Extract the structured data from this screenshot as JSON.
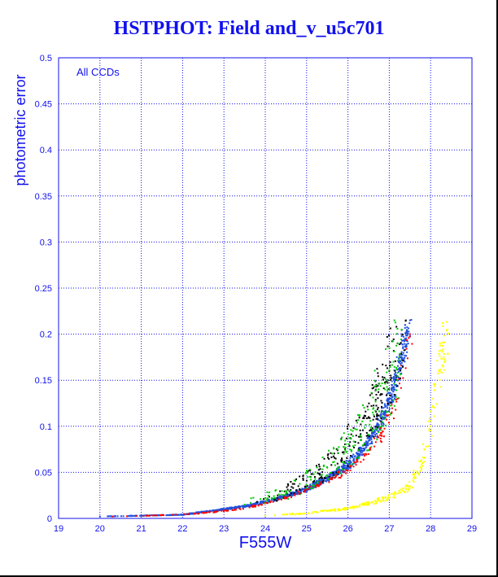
{
  "page": {
    "title": "HSTPHOT: Field and_v_u5c701"
  },
  "colors": {
    "accent": "#1111ee",
    "grid": "#1111ee",
    "background": "#ffffff",
    "points_blue": "#2050dd",
    "points_black": "#000000",
    "points_green": "#00cc00",
    "points_red": "#ff0000",
    "points_yellow": "#ffff00"
  },
  "chart_data": {
    "type": "scatter",
    "title": "",
    "annotation": "All CCDs",
    "xlabel": "F555W",
    "ylabel": "photometric error",
    "xlim": [
      19,
      29
    ],
    "ylim": [
      0,
      0.5
    ],
    "grid": true,
    "x_ticks": [
      "19",
      "20",
      "21",
      "22",
      "23",
      "24",
      "25",
      "26",
      "27",
      "28",
      "29"
    ],
    "y_ticks": [
      "0",
      "0.05",
      "0.1",
      "0.15",
      "0.2",
      "0.25",
      "0.3",
      "0.35",
      "0.4",
      "0.45",
      "0.5"
    ],
    "series": [
      {
        "name": "",
        "color": "blue",
        "marker": "dense band",
        "x": [
          20.0,
          21.0,
          22.0,
          22.5,
          23.0,
          23.5,
          24.0,
          24.5,
          25.0,
          25.5,
          26.0,
          26.3,
          26.6,
          26.9,
          27.1,
          27.3,
          27.5
        ],
        "y": [
          0.002,
          0.003,
          0.004,
          0.007,
          0.01,
          0.013,
          0.018,
          0.024,
          0.032,
          0.043,
          0.058,
          0.072,
          0.09,
          0.115,
          0.14,
          0.175,
          0.215
        ]
      },
      {
        "name": "",
        "color": "black",
        "marker": "scatter",
        "x": [
          23.8,
          24.3,
          24.8,
          25.2,
          25.6,
          25.9,
          26.2,
          26.5,
          26.8,
          27.0,
          27.2,
          27.4
        ],
        "y": [
          0.018,
          0.025,
          0.035,
          0.045,
          0.058,
          0.072,
          0.09,
          0.11,
          0.135,
          0.16,
          0.19,
          0.215
        ]
      },
      {
        "name": "",
        "color": "green",
        "marker": "scatter",
        "x": [
          23.5,
          24.0,
          24.6,
          25.1,
          25.5,
          25.9,
          26.3,
          26.6,
          26.9,
          27.1,
          27.3
        ],
        "y": [
          0.015,
          0.022,
          0.03,
          0.042,
          0.055,
          0.07,
          0.09,
          0.115,
          0.14,
          0.17,
          0.205
        ]
      },
      {
        "name": "",
        "color": "red",
        "marker": "scatter",
        "x": [
          20.3,
          21.2,
          22.3,
          23.4,
          24.5,
          25.3,
          25.9,
          26.4,
          26.8,
          27.2,
          27.5
        ],
        "y": [
          0.002,
          0.003,
          0.005,
          0.01,
          0.022,
          0.036,
          0.05,
          0.068,
          0.09,
          0.13,
          0.2
        ]
      },
      {
        "name": "",
        "color": "yellow",
        "marker": "scatter",
        "x": [
          24.0,
          24.8,
          25.5,
          26.0,
          26.5,
          27.0,
          27.5,
          27.8,
          28.0,
          28.2,
          28.4
        ],
        "y": [
          0.003,
          0.005,
          0.008,
          0.011,
          0.016,
          0.023,
          0.035,
          0.06,
          0.1,
          0.16,
          0.205
        ]
      }
    ]
  }
}
